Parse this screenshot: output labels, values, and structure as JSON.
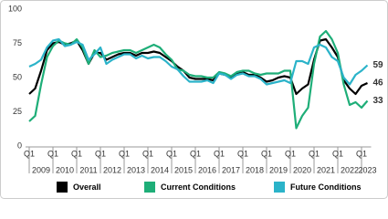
{
  "chart_data": {
    "type": "line",
    "categories": [
      "Q1",
      null,
      null,
      null,
      "Q1",
      null,
      null,
      null,
      "Q1",
      null,
      null,
      null,
      "Q1",
      null,
      null,
      null,
      "Q1",
      null,
      null,
      null,
      "Q1",
      null,
      null,
      null,
      "Q1",
      null,
      null,
      null,
      "Q1",
      null,
      null,
      null,
      "Q1",
      null,
      null,
      null,
      "Q1",
      null,
      null,
      null,
      "Q1",
      null,
      null,
      null,
      "Q1",
      null,
      null,
      null,
      "Q1",
      null,
      null,
      null,
      "Q1",
      null,
      null,
      null,
      "Q1",
      null
    ],
    "year_labels": [
      "2009",
      "2010",
      "2011",
      "2012",
      "2013",
      "2014",
      "2015",
      "2016",
      "2017",
      "2018",
      "2019",
      "2020",
      "2021",
      "2022",
      "2023"
    ],
    "ylim": [
      0,
      100
    ],
    "yticks": [
      0,
      25,
      50,
      75,
      100
    ],
    "series": [
      {
        "name": "Overall",
        "color": "#000000",
        "values": [
          38,
          42,
          55,
          70,
          75,
          76,
          74,
          75,
          77,
          70,
          60,
          68,
          68,
          63,
          65,
          67,
          68,
          68,
          66,
          68,
          68,
          69,
          68,
          65,
          62,
          58,
          55,
          50,
          49,
          49,
          49,
          48,
          53,
          52,
          50,
          53,
          54,
          52,
          52,
          50,
          47,
          48,
          50,
          51,
          50,
          38,
          42,
          45,
          63,
          77,
          78,
          72,
          65,
          48,
          42,
          38,
          44,
          46
        ]
      },
      {
        "name": "Current Conditions",
        "color": "#1eae78",
        "values": [
          18,
          22,
          45,
          65,
          73,
          77,
          75,
          74,
          78,
          72,
          60,
          70,
          65,
          66,
          68,
          69,
          70,
          70,
          68,
          70,
          72,
          74,
          72,
          67,
          63,
          56,
          55,
          52,
          51,
          51,
          50,
          50,
          54,
          53,
          51,
          54,
          55,
          55,
          53,
          52,
          53,
          53,
          53,
          55,
          55,
          13,
          22,
          28,
          60,
          80,
          84,
          78,
          68,
          45,
          30,
          32,
          28,
          33
        ]
      },
      {
        "name": "Future Conditions",
        "color": "#2bb3c9",
        "values": [
          58,
          60,
          63,
          72,
          77,
          78,
          73,
          74,
          76,
          74,
          63,
          67,
          72,
          60,
          63,
          65,
          67,
          67,
          64,
          66,
          64,
          65,
          65,
          62,
          58,
          56,
          51,
          47,
          47,
          47,
          48,
          46,
          53,
          52,
          49,
          52,
          53,
          51,
          51,
          49,
          45,
          46,
          47,
          48,
          46,
          62,
          62,
          60,
          72,
          74,
          72,
          65,
          62,
          50,
          45,
          52,
          55,
          59
        ]
      }
    ]
  }
}
